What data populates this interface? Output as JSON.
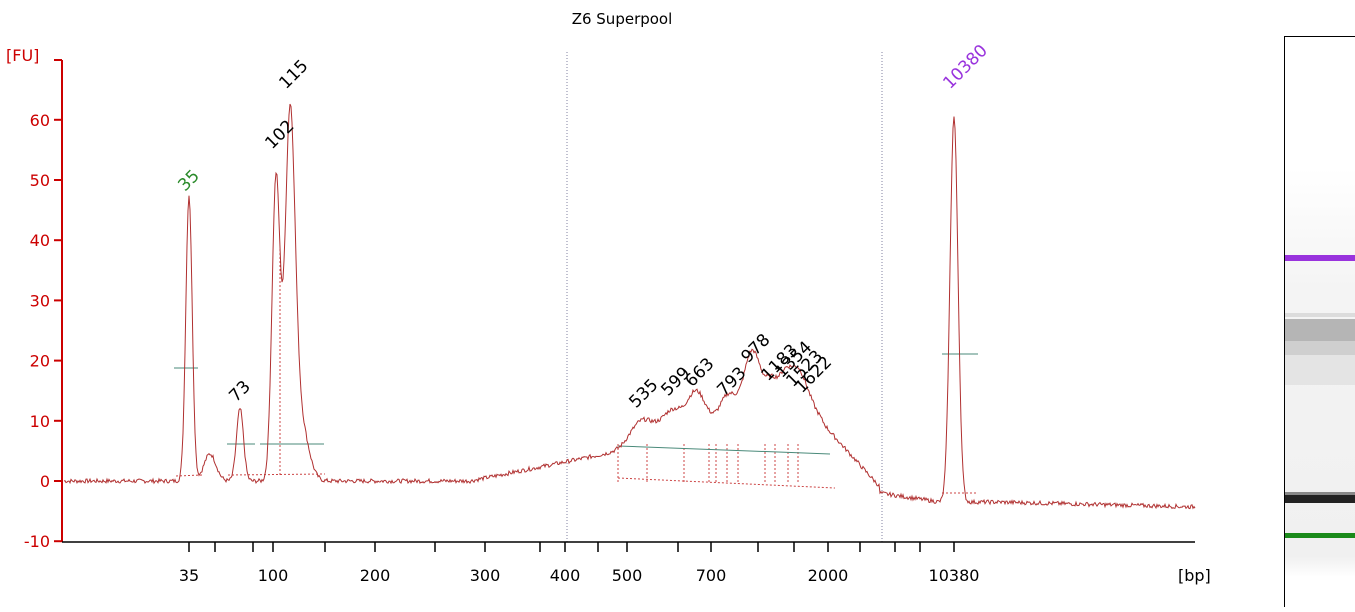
{
  "chart_data": {
    "type": "line",
    "title": "Z6 Superpool",
    "ylabel": "[FU]",
    "xlabel": "[bp]",
    "ylim": [
      -10,
      67
    ],
    "y_ticks": [
      -10,
      0,
      10,
      20,
      30,
      40,
      50,
      60
    ],
    "x_tick_labels": [
      "35",
      "100",
      "200",
      "300",
      "400",
      "500",
      "700",
      "2000",
      "10380"
    ],
    "grid": false,
    "colors": {
      "axis": "#cc0000",
      "trace": "#b03030",
      "marker_lower": "#2a8a2a",
      "marker_upper": "#9933dd",
      "peak_label": "#000000",
      "baseline": "#4a8a7a"
    },
    "peaks": [
      {
        "label": "35",
        "bp": 35,
        "fu": 47,
        "kind": "lower-marker"
      },
      {
        "label": "73",
        "bp": 73,
        "fu": 12,
        "kind": "peak"
      },
      {
        "label": "102",
        "bp": 102,
        "fu": 54,
        "kind": "peak"
      },
      {
        "label": "115",
        "bp": 115,
        "fu": 64,
        "kind": "peak"
      },
      {
        "label": "535",
        "bp": 535,
        "fu": 11,
        "kind": "peak"
      },
      {
        "label": "599",
        "bp": 599,
        "fu": 13,
        "kind": "peak"
      },
      {
        "label": "663",
        "bp": 663,
        "fu": 14.5,
        "kind": "peak"
      },
      {
        "label": "793",
        "bp": 793,
        "fu": 13,
        "kind": "peak"
      },
      {
        "label": "978",
        "bp": 978,
        "fu": 18.5,
        "kind": "peak"
      },
      {
        "label": "1183",
        "bp": 1183,
        "fu": 15.5,
        "kind": "peak"
      },
      {
        "label": "1354",
        "bp": 1354,
        "fu": 16,
        "kind": "peak"
      },
      {
        "label": "1523",
        "bp": 1523,
        "fu": 14.5,
        "kind": "peak"
      },
      {
        "label": "1622",
        "bp": 1622,
        "fu": 13.5,
        "kind": "peak"
      },
      {
        "label": "10380",
        "bp": 10380,
        "fu": 64,
        "kind": "upper-marker"
      }
    ]
  }
}
